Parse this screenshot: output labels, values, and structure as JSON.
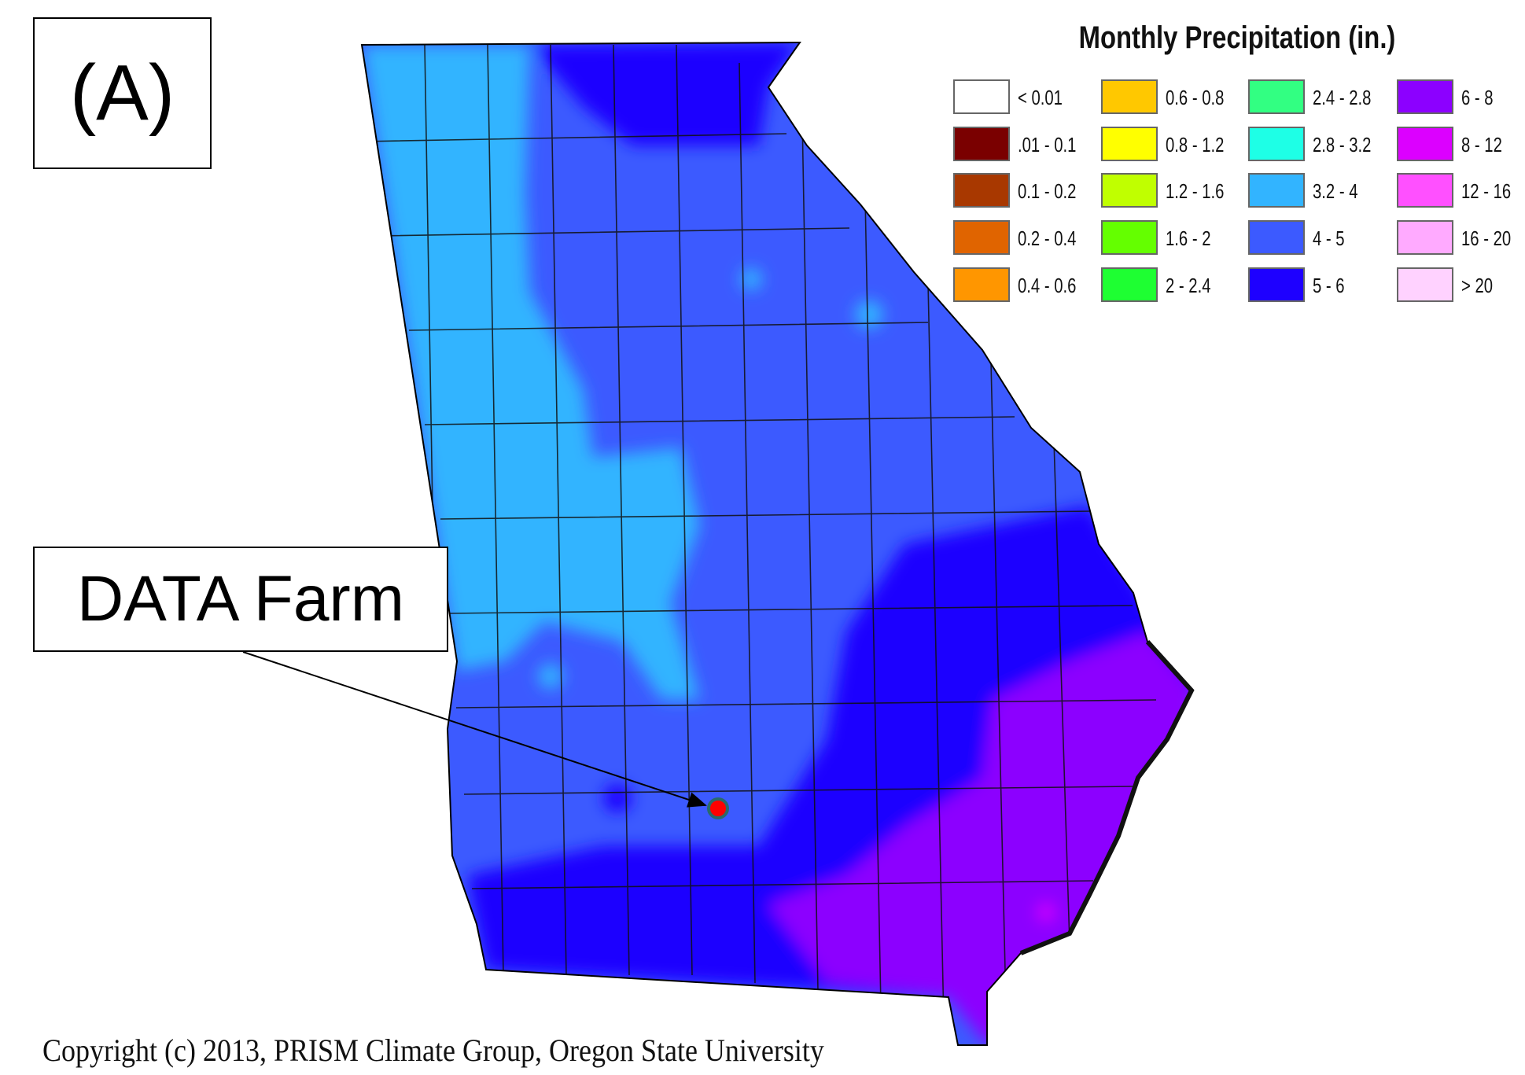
{
  "panel_label": "(A)",
  "callout_label": "DATA Farm",
  "copyright": "Copyright (c) 2013, PRISM Climate Group, Oregon State University",
  "legend": {
    "title": "Monthly Precipitation (in.)",
    "items": [
      {
        "label": "< 0.01",
        "color": "#ffffff"
      },
      {
        "label": ".01 - 0.1",
        "color": "#7a0000"
      },
      {
        "label": "0.1 - 0.2",
        "color": "#a83800"
      },
      {
        "label": "0.2 - 0.4",
        "color": "#e06400"
      },
      {
        "label": "0.4 - 0.6",
        "color": "#ff9600"
      },
      {
        "label": "0.6 - 0.8",
        "color": "#ffc800"
      },
      {
        "label": "0.8 - 1.2",
        "color": "#ffff00"
      },
      {
        "label": "1.2 - 1.6",
        "color": "#c0ff00"
      },
      {
        "label": "1.6 - 2",
        "color": "#64ff00"
      },
      {
        "label": "2 - 2.4",
        "color": "#1eff32"
      },
      {
        "label": "2.4 - 2.8",
        "color": "#32ff82"
      },
      {
        "label": "2.8 - 3.2",
        "color": "#1effe6"
      },
      {
        "label": "3.2 - 4",
        "color": "#32b4ff"
      },
      {
        "label": "4 - 5",
        "color": "#3c5aff"
      },
      {
        "label": "5 - 6",
        "color": "#1e00ff"
      },
      {
        "label": "6 - 8",
        "color": "#8c00ff"
      },
      {
        "label": "8 - 12",
        "color": "#dc00ff"
      },
      {
        "label": "12 - 16",
        "color": "#ff50ff"
      },
      {
        "label": "16 - 20",
        "color": "#ffaaff"
      },
      {
        "label": "> 20",
        "color": "#ffd2ff"
      }
    ]
  },
  "map": {
    "region": "Georgia",
    "marker": {
      "name": "DATA Farm",
      "color": "#ff0000",
      "ring_color": "#2a6a6a"
    }
  }
}
